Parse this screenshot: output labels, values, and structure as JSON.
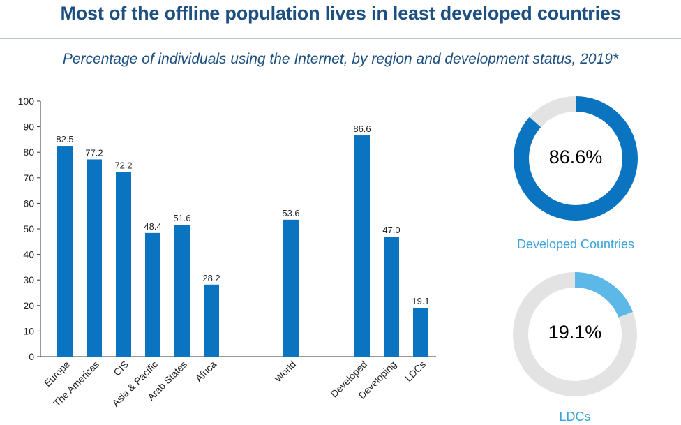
{
  "header": {
    "title": "Most of the offline population lives in least developed countries",
    "subtitle": "Percentage of individuals using the Internet, by region and development status, 2019*"
  },
  "colors": {
    "bar": "#0a74c0",
    "title": "#1d4f80",
    "ring_track": "#e3e3e3",
    "ring_developed": "#0a74c0",
    "ring_ldc": "#5cb8e6",
    "ring_label": "#3aa3d9"
  },
  "chart_data": [
    {
      "type": "bar",
      "categories": [
        "Europe",
        "The Americas",
        "CIS",
        "Asia & Pacific",
        "Arab States",
        "Africa",
        "World",
        "Developed",
        "Developing",
        "LDCs"
      ],
      "values": [
        82.5,
        77.2,
        72.2,
        48.4,
        51.6,
        28.2,
        53.6,
        86.6,
        47.0,
        19.1
      ],
      "value_labels": [
        "82.5",
        "77.2",
        "72.2",
        "48.4",
        "51.6",
        "28.2",
        "53.6",
        "86.6",
        "47.0",
        "19.1"
      ],
      "ylim": [
        0,
        100
      ],
      "yticks": [
        0,
        10,
        20,
        30,
        40,
        50,
        60,
        70,
        80,
        90,
        100
      ],
      "grid": false,
      "xlabel": "",
      "ylabel": ""
    },
    {
      "type": "pie",
      "variant": "donut",
      "value": 86.6,
      "value_label": "86.6%",
      "label": "Developed Countries"
    },
    {
      "type": "pie",
      "variant": "donut",
      "value": 19.1,
      "value_label": "19.1%",
      "label": "LDCs"
    }
  ]
}
